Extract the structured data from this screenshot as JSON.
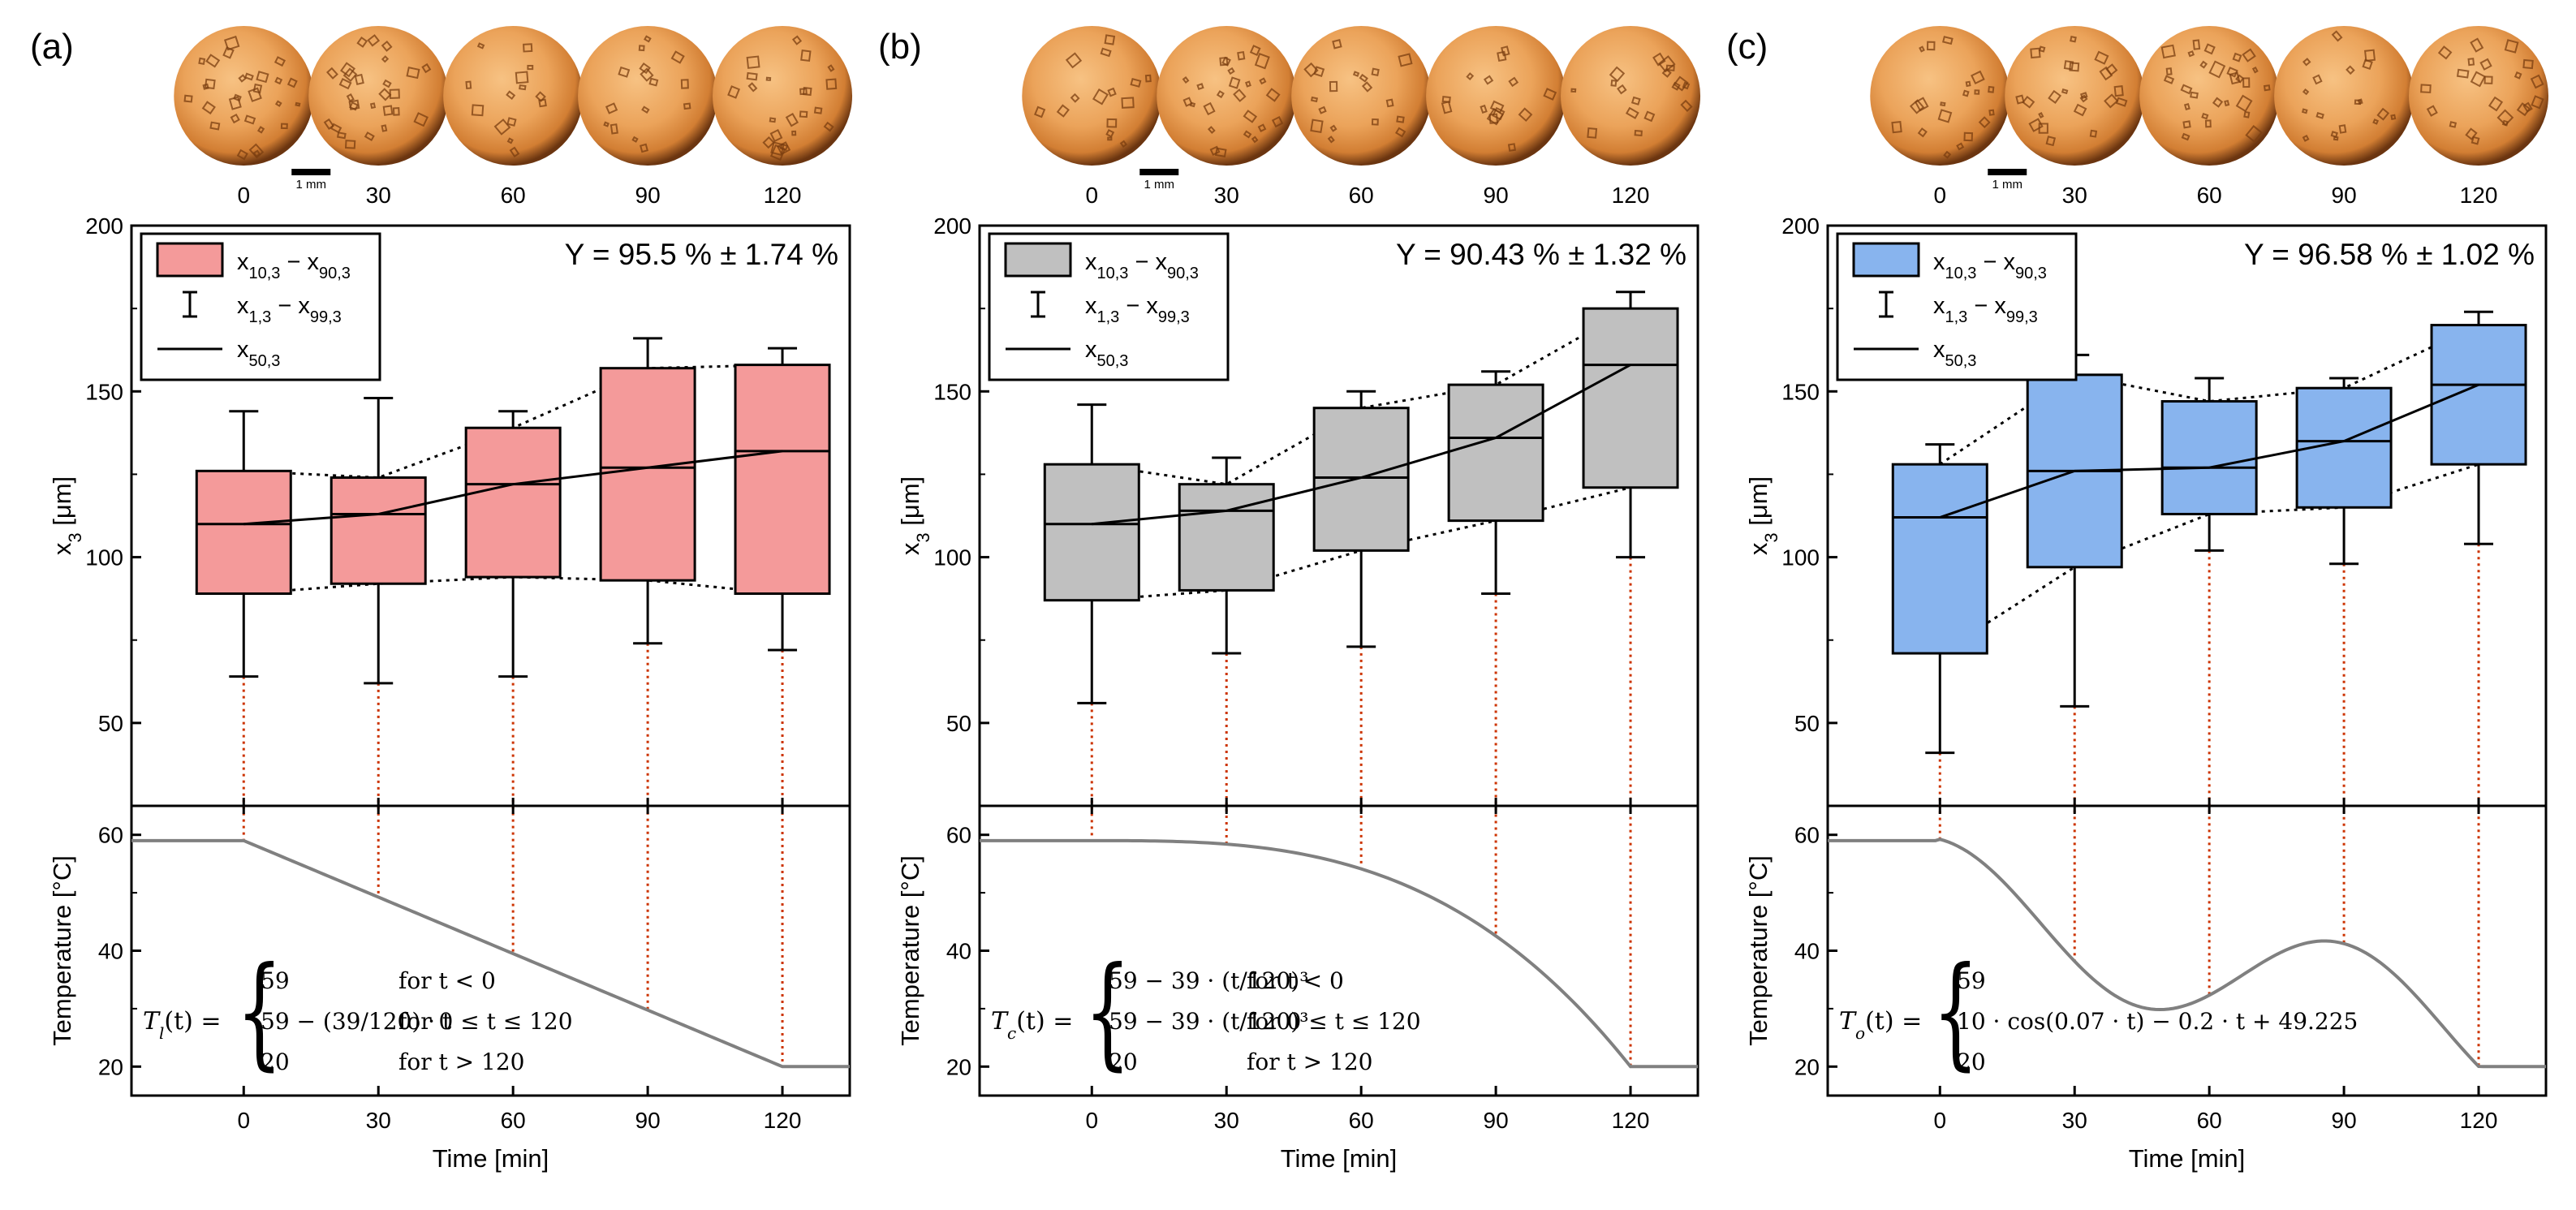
{
  "figure": {
    "x_title": "Time [min]",
    "y_title_top": "x",
    "y_title_top_sub": "3",
    "y_title_top_unit": " [μm]",
    "y_title_bottom": "Temperature [°C]",
    "scale_bar_label": "1 mm",
    "legend": {
      "box_main": "x",
      "box_sub_a": "10,3",
      "box_dash": " − ",
      "box_main2": "x",
      "box_sub_b": "90,3",
      "whisker_main": "x",
      "whisker_sub_a": "1,3",
      "whisker_dash": " − ",
      "whisker_main2": "x",
      "whisker_sub_b": "99,3",
      "median_main": "x",
      "median_sub": "50,3"
    },
    "colors": {
      "line_profile": "#808080",
      "guide_dotted": "#cc3300",
      "micrograph_light": "#f5b670",
      "micrograph_mid": "#e08a3c",
      "micrograph_dark": "#7a3d10"
    }
  },
  "chart_data": [
    {
      "panel_label": "(a)",
      "type": "box",
      "title": "Y = 95.5 % ± 1.74 %",
      "color": "#f49a9a",
      "categories": [
        0,
        30,
        60,
        90,
        120
      ],
      "x_ticks": [
        "0",
        "30",
        "60",
        "90",
        "120"
      ],
      "xlim": [
        -25,
        135
      ],
      "ylim_top": [
        25,
        200
      ],
      "y_ticks_top": [
        "50",
        "100",
        "150",
        "200"
      ],
      "ylim_bottom": [
        15,
        65
      ],
      "y_ticks_bottom": [
        "20",
        "40",
        "60"
      ],
      "boxes": [
        {
          "t": 0,
          "p1": 64,
          "p10": 89,
          "p50": 110,
          "p90": 126,
          "p99": 144
        },
        {
          "t": 30,
          "p1": 62,
          "p10": 92,
          "p50": 113,
          "p90": 124,
          "p99": 148
        },
        {
          "t": 60,
          "p1": 64,
          "p10": 94,
          "p50": 122,
          "p90": 139,
          "p99": 144
        },
        {
          "t": 90,
          "p1": 74,
          "p10": 93,
          "p50": 127,
          "p90": 157,
          "p99": 166
        },
        {
          "t": 120,
          "p1": 72,
          "p10": 89,
          "p50": 132,
          "p90": 158,
          "p99": 163
        }
      ],
      "temperature_profile": "linear",
      "equation": {
        "lhs_main": "T",
        "lhs_sub": "l",
        "lhs_rest": "(t) =",
        "rows": [
          {
            "expr": "59",
            "cond": "for t < 0"
          },
          {
            "expr": "59 − (39/120) · t",
            "cond": "for 0 ≤ t ≤ 120"
          },
          {
            "expr": "20",
            "cond": "for t > 120"
          }
        ]
      }
    },
    {
      "panel_label": "(b)",
      "type": "box",
      "title": "Y = 90.43 % ± 1.32 %",
      "color": "#c0c0c0",
      "categories": [
        0,
        30,
        60,
        90,
        120
      ],
      "x_ticks": [
        "0",
        "30",
        "60",
        "90",
        "120"
      ],
      "xlim": [
        -25,
        135
      ],
      "ylim_top": [
        25,
        200
      ],
      "y_ticks_top": [
        "50",
        "100",
        "150",
        "200"
      ],
      "ylim_bottom": [
        15,
        65
      ],
      "y_ticks_bottom": [
        "20",
        "40",
        "60"
      ],
      "boxes": [
        {
          "t": 0,
          "p1": 56,
          "p10": 87,
          "p50": 110,
          "p90": 128,
          "p99": 146
        },
        {
          "t": 30,
          "p1": 71,
          "p10": 90,
          "p50": 114,
          "p90": 122,
          "p99": 130
        },
        {
          "t": 60,
          "p1": 73,
          "p10": 102,
          "p50": 124,
          "p90": 145,
          "p99": 150
        },
        {
          "t": 90,
          "p1": 89,
          "p10": 111,
          "p50": 136,
          "p90": 152,
          "p99": 156
        },
        {
          "t": 120,
          "p1": 100,
          "p10": 121,
          "p50": 158,
          "p90": 175,
          "p99": 180
        }
      ],
      "temperature_profile": "cubic",
      "equation": {
        "lhs_main": "T",
        "lhs_sub": "c",
        "lhs_rest": "(t) =",
        "rows": [
          {
            "expr": "59 − 39 · (t/120)³",
            "cond": "for t < 0"
          },
          {
            "expr": "59 − 39 · (t/120)³",
            "cond": "for 0 ≤ t ≤ 120"
          },
          {
            "expr": "20",
            "cond": "for t > 120"
          }
        ]
      }
    },
    {
      "panel_label": "(c)",
      "type": "box",
      "title": "Y = 96.58 % ± 1.02 %",
      "color": "#88b4ee",
      "categories": [
        0,
        30,
        60,
        90,
        120
      ],
      "x_ticks": [
        "0",
        "30",
        "60",
        "90",
        "120"
      ],
      "xlim": [
        -25,
        135
      ],
      "ylim_top": [
        25,
        200
      ],
      "y_ticks_top": [
        "50",
        "100",
        "150",
        "200"
      ],
      "ylim_bottom": [
        15,
        65
      ],
      "y_ticks_bottom": [
        "20",
        "40",
        "60"
      ],
      "boxes": [
        {
          "t": 0,
          "p1": 41,
          "p10": 71,
          "p50": 112,
          "p90": 128,
          "p99": 134
        },
        {
          "t": 30,
          "p1": 55,
          "p10": 97,
          "p50": 126,
          "p90": 155,
          "p99": 161
        },
        {
          "t": 60,
          "p1": 102,
          "p10": 113,
          "p50": 127,
          "p90": 147,
          "p99": 154
        },
        {
          "t": 90,
          "p1": 98,
          "p10": 115,
          "p50": 135,
          "p90": 151,
          "p99": 154
        },
        {
          "t": 120,
          "p1": 104,
          "p10": 128,
          "p50": 152,
          "p90": 170,
          "p99": 174
        }
      ],
      "temperature_profile": "oscillating",
      "equation": {
        "lhs_main": "T",
        "lhs_sub": "o",
        "lhs_rest": "(t) =",
        "rows": [
          {
            "expr": "59",
            "cond": ""
          },
          {
            "expr": "10 · cos(0.07 · t) − 0.2 · t + 49.225",
            "cond": ""
          },
          {
            "expr": "20",
            "cond": ""
          }
        ]
      }
    }
  ]
}
